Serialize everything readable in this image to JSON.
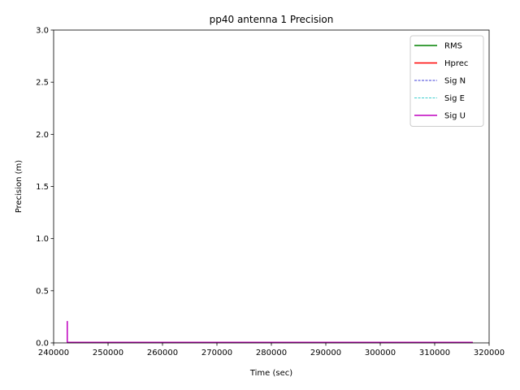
{
  "chart_data": {
    "type": "line",
    "title": "pp40 antenna 1 Precision",
    "xlabel": "Time (sec)",
    "ylabel": "Precision (m)",
    "xlim": [
      240000,
      320000
    ],
    "ylim": [
      0,
      3.0
    ],
    "xticks": [
      240000,
      250000,
      260000,
      270000,
      280000,
      290000,
      300000,
      310000,
      320000
    ],
    "yticks": [
      0.0,
      0.5,
      1.0,
      1.5,
      2.0,
      2.5,
      3.0
    ],
    "xtick_labels": [
      "240000",
      "250000",
      "260000",
      "270000",
      "280000",
      "290000",
      "300000",
      "310000",
      "320000"
    ],
    "ytick_labels": [
      "0.0",
      "0.5",
      "1.0",
      "1.5",
      "2.0",
      "2.5",
      "3.0"
    ],
    "grid": false,
    "legend_position": "top-right",
    "series": [
      {
        "name": "RMS",
        "color": "#008000",
        "style": "solid",
        "x": [
          242500,
          317000
        ],
        "y": [
          0.002,
          0.002
        ]
      },
      {
        "name": "Hprec",
        "color": "#ff0000",
        "style": "solid",
        "x": [
          242500,
          317000
        ],
        "y": [
          0.003,
          0.003
        ]
      },
      {
        "name": "Sig N",
        "color": "#0000cc",
        "style": "dashed",
        "x": [
          242500,
          317000
        ],
        "y": [
          0.002,
          0.002
        ]
      },
      {
        "name": "Sig E",
        "color": "#00bfbf",
        "style": "dashed",
        "x": [
          242500,
          317000
        ],
        "y": [
          0.002,
          0.002
        ]
      },
      {
        "name": "Sig U",
        "color": "#bf00bf",
        "style": "solid",
        "x": [
          242500,
          242500,
          242700,
          317000
        ],
        "y": [
          0.21,
          0.005,
          0.005,
          0.005
        ]
      }
    ]
  }
}
